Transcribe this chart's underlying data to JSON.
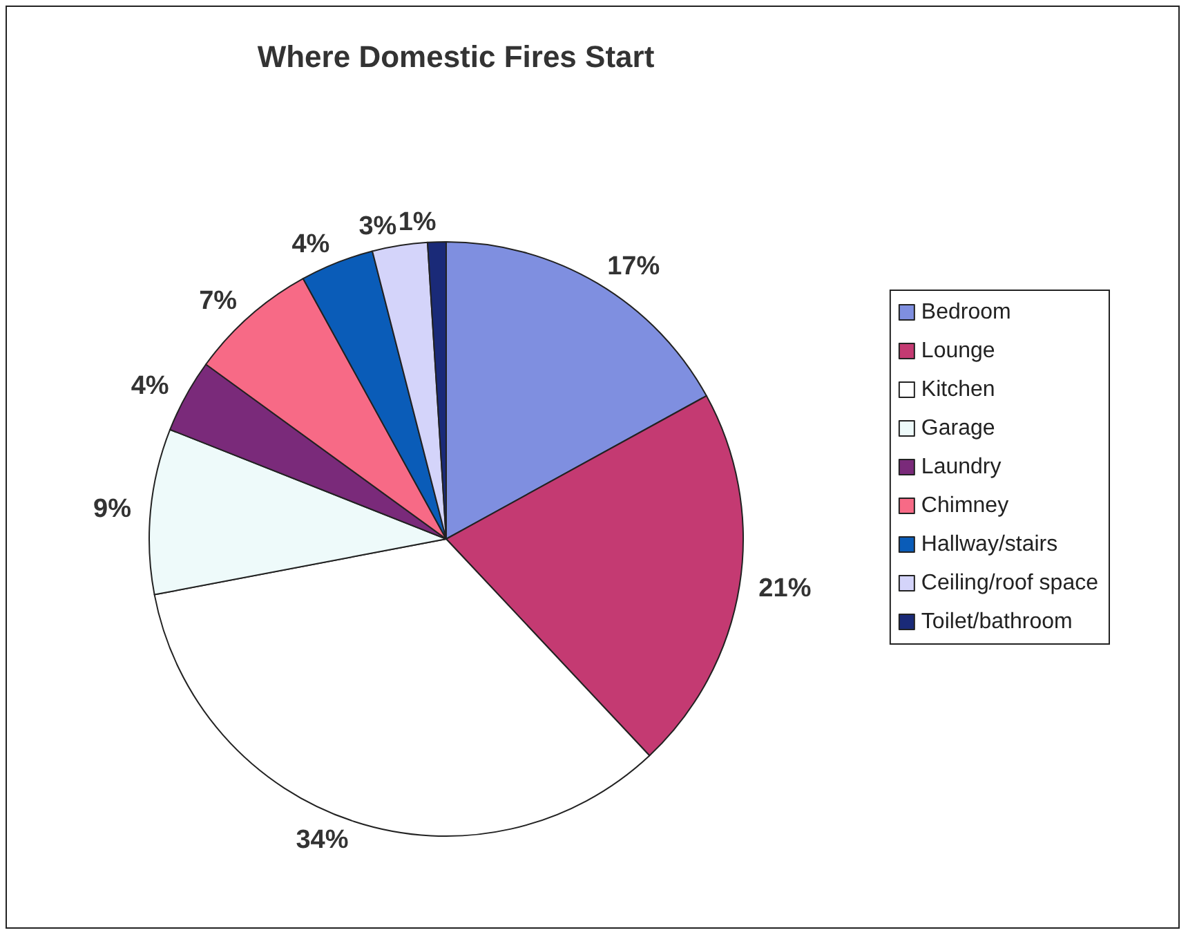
{
  "chart_data": {
    "type": "pie",
    "title": "Where Domestic Fires Start",
    "categories": [
      "Bedroom",
      "Lounge",
      "Kitchen",
      "Garage",
      "Laundry",
      "Chimney",
      "Hallway/stairs",
      "Ceiling/roof space",
      "Toilet/bathroom"
    ],
    "values": [
      17,
      21,
      34,
      9,
      4,
      7,
      4,
      3,
      1
    ],
    "colors": [
      "#7f8fe0",
      "#c43a72",
      "#ffffff",
      "#eefafa",
      "#7a2a7a",
      "#f76a86",
      "#0a5cb8",
      "#d4d4fa",
      "#1a2a78"
    ],
    "value_labels": [
      "17%",
      "21%",
      "34%",
      "9%",
      "4%",
      "7%",
      "4%",
      "3%",
      "1%"
    ],
    "legend": "right"
  }
}
